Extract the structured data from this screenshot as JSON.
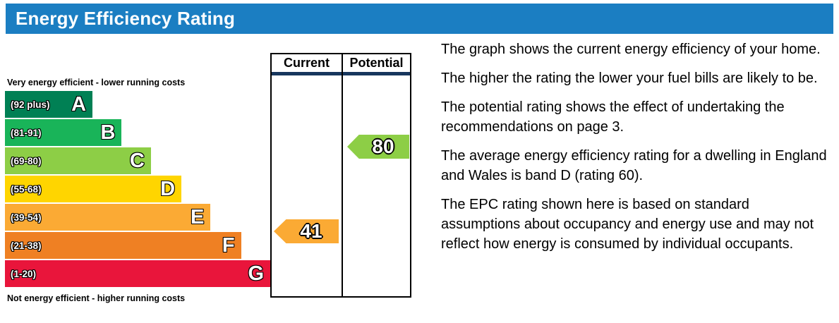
{
  "header": {
    "title": "Energy Efficiency Rating"
  },
  "colors": {
    "banner_bg": "#1b7ec2",
    "header_underline": "#17365d",
    "border": "#000000"
  },
  "chart_data": {
    "type": "bar",
    "title": "Energy Efficiency Rating",
    "top_label": "Very energy efficient - lower running costs",
    "bottom_label": "Not energy efficient - higher running costs",
    "column_headers": {
      "current": "Current",
      "potential": "Potential"
    },
    "bands": [
      {
        "letter": "A",
        "range": "(92 plus)",
        "min": 92,
        "max": 100,
        "color": "#008054",
        "width_pct": 33
      },
      {
        "letter": "B",
        "range": "(81-91)",
        "min": 81,
        "max": 91,
        "color": "#19b459",
        "width_pct": 44
      },
      {
        "letter": "C",
        "range": "(69-80)",
        "min": 69,
        "max": 80,
        "color": "#8dce46",
        "width_pct": 55
      },
      {
        "letter": "D",
        "range": "(55-68)",
        "min": 55,
        "max": 68,
        "color": "#ffd500",
        "width_pct": 66.5
      },
      {
        "letter": "E",
        "range": "(39-54)",
        "min": 39,
        "max": 54,
        "color": "#fbaa34",
        "width_pct": 77.5
      },
      {
        "letter": "F",
        "range": "(21-38)",
        "min": 21,
        "max": 38,
        "color": "#ef8023",
        "width_pct": 89
      },
      {
        "letter": "G",
        "range": "(1-20)",
        "min": 1,
        "max": 20,
        "color": "#e9153b",
        "width_pct": 100
      }
    ],
    "current": {
      "value": 41,
      "band": "E",
      "color": "#fbaa34"
    },
    "potential": {
      "value": 80,
      "band": "C",
      "color": "#8dce46"
    }
  },
  "description": {
    "paragraphs": [
      "The graph shows the current energy efficiency of your home.",
      "The higher the rating the lower your fuel bills are likely to be.",
      "The potential rating shows the effect of undertaking the recommendations on page 3.",
      "The average energy efficiency rating for a dwelling in England and Wales is band D (rating 60).",
      "The EPC rating shown here is based on standard assumptions about occupancy and energy use and may not reflect how energy is consumed by individual occupants."
    ]
  }
}
